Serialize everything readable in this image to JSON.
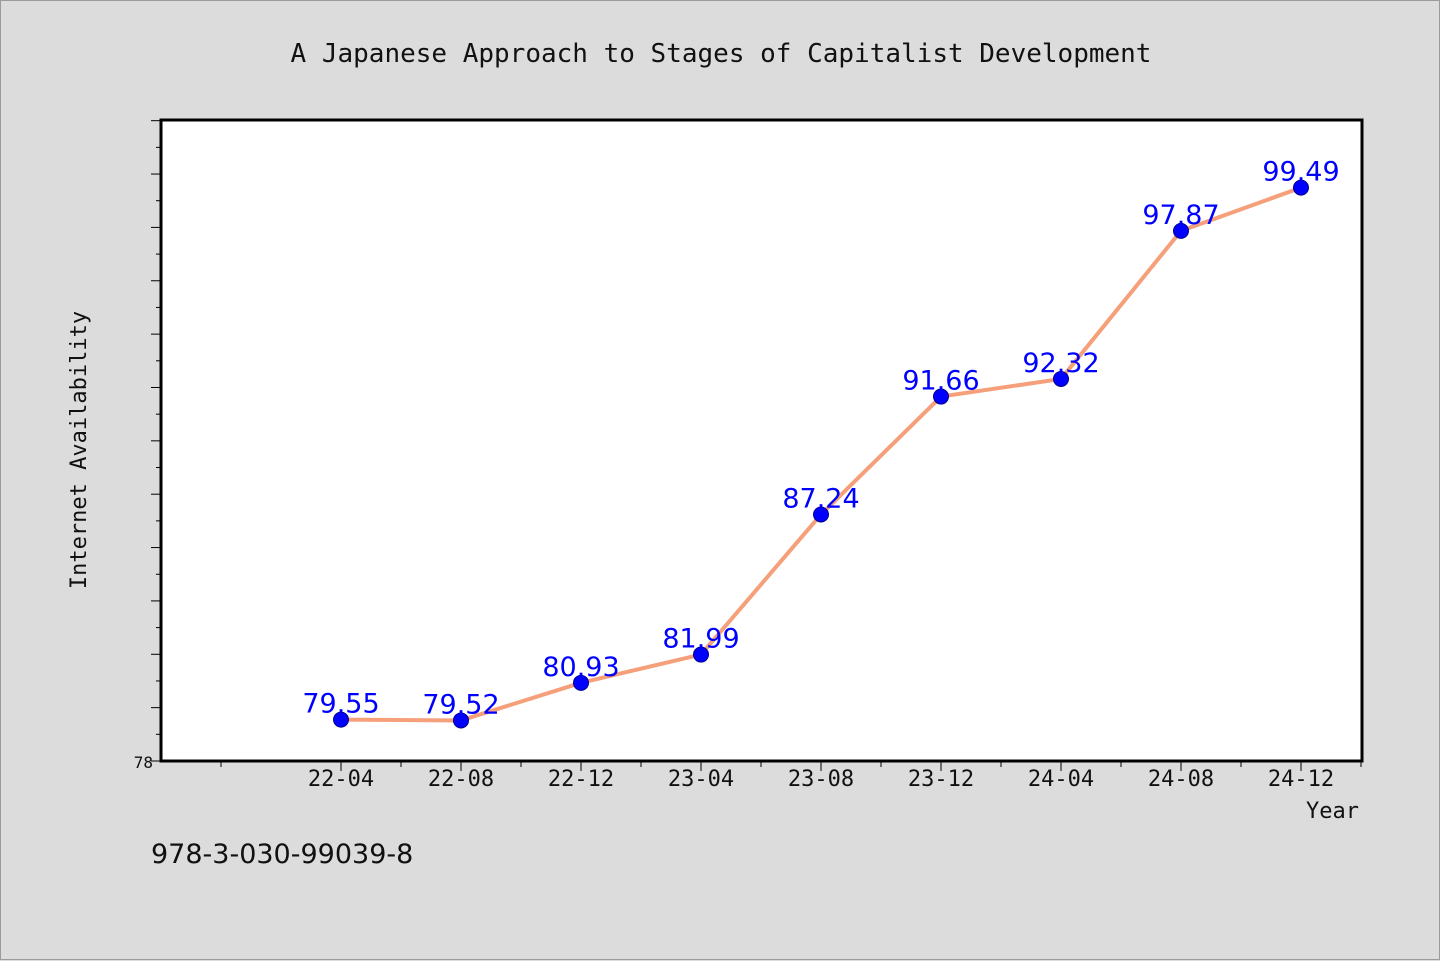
{
  "isbn": "978-3-030-99039-8",
  "colors": {
    "background": "#dcdcdc",
    "plot_background": "#ffffff",
    "line": "#f5a07a",
    "marker": "#0000ff",
    "data_label": "#0000ff"
  },
  "chart_data": {
    "type": "line",
    "title": "A Japanese Approach to Stages of Capitalist Development",
    "xlabel": "Year",
    "ylabel": "Internet Availability",
    "categories": [
      "22-04",
      "22-08",
      "22-12",
      "23-04",
      "23-08",
      "23-12",
      "24-04",
      "24-08",
      "24-12"
    ],
    "values": [
      79.55,
      79.52,
      80.93,
      81.99,
      87.24,
      91.66,
      92.32,
      97.87,
      99.49
    ],
    "data_labels": [
      "79.55",
      "79.52",
      "80.93",
      "81.99",
      "87.24",
      "91.66",
      "92.32",
      "97.87",
      "99.49"
    ],
    "ylim": [
      78,
      102
    ],
    "y_tick_labels": [
      "78"
    ],
    "grid": false,
    "markers": "circle"
  }
}
